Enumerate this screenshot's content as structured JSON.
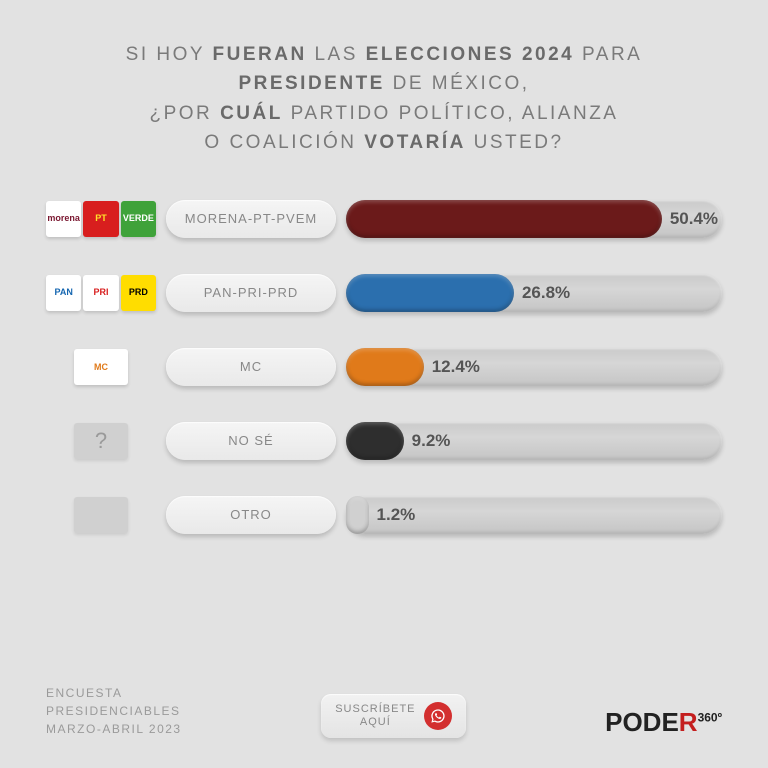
{
  "title_html": "SI HOY <b>FUERAN</b> LAS <b>ELECCIONES 2024</b> PARA <b>PRESIDENTE</b> DE MÉXICO,<br>¿POR <b>CUÁL</b> PARTIDO POLÍTICO, ALIANZA<br>O COALICIÓN <b>VOTARÍA</b> USTED?",
  "bar_max": 60,
  "rows": [
    {
      "label": "MORENA-PT-PVEM",
      "value": 50.4,
      "pct_text": "50.4%",
      "fill_color": "#6b1a1a",
      "logo_type": "triple",
      "logos": [
        {
          "bg": "#ffffff",
          "fg": "#7a1730",
          "text": "morena"
        },
        {
          "bg": "#d81e1e",
          "fg": "#ffe12a",
          "text": "PT"
        },
        {
          "bg": "#3fa23a",
          "fg": "#ffffff",
          "text": "VERDE"
        }
      ]
    },
    {
      "label": "PAN-PRI-PRD",
      "value": 26.8,
      "pct_text": "26.8%",
      "fill_color": "#2b6fae",
      "logo_type": "triple",
      "logos": [
        {
          "bg": "#ffffff",
          "fg": "#1566b0",
          "text": "PAN"
        },
        {
          "bg": "#ffffff",
          "fg": "#d81e1e",
          "text": "PRI"
        },
        {
          "bg": "#ffdd00",
          "fg": "#000000",
          "text": "PRD"
        }
      ]
    },
    {
      "label": "MC",
      "value": 12.4,
      "pct_text": "12.4%",
      "fill_color": "#e07a1a",
      "logo_type": "single",
      "logos": [
        {
          "bg": "#ffffff",
          "fg": "#e07a1a",
          "text": "MC"
        }
      ]
    },
    {
      "label": "NO SÉ",
      "value": 9.2,
      "pct_text": "9.2%",
      "fill_color": "#2e2e2e",
      "logo_type": "question"
    },
    {
      "label": "OTRO",
      "value": 1.2,
      "pct_text": "1.2%",
      "fill_color": "#d0d0d0",
      "logo_type": "empty"
    }
  ],
  "source": {
    "line1": "ENCUESTA",
    "line2": "PRESIDENCIABLES",
    "line3": "MARZO-ABRIL 2023"
  },
  "subscribe": {
    "line1": "SUSCRÍBETE",
    "line2": "AQUÍ"
  },
  "brand": {
    "word1": "PODE",
    "word2": "R",
    "suffix": "360º"
  }
}
